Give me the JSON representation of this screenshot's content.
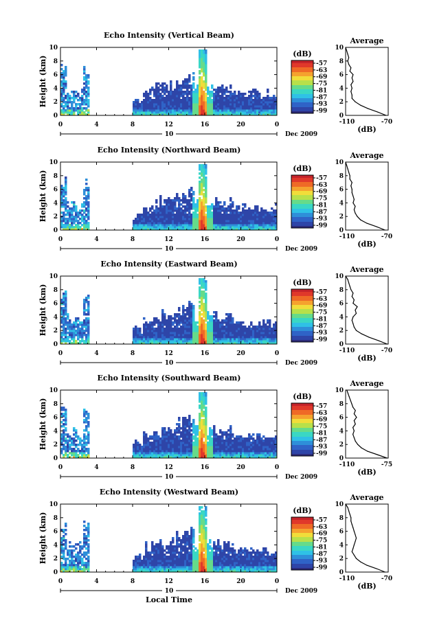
{
  "figure": {
    "xaxis_title": "Local Time",
    "date_label": "Dec 2009"
  },
  "chart_data": [
    {
      "type": "heatmap",
      "title": "Echo Intensity (Vertical Beam)",
      "ylabel": "Height (km)",
      "xlim": [
        0,
        24
      ],
      "ylim": [
        0,
        10
      ],
      "xticks": [
        "0",
        "4",
        "8",
        "12",
        "16",
        "20",
        "0"
      ],
      "yticks": [
        "0",
        "2",
        "4",
        "6",
        "8",
        "10"
      ],
      "day_label": "10",
      "colorbar": {
        "unit": "(dB)",
        "ticks": [
          "-57",
          "-63",
          "-69",
          "-75",
          "-81",
          "-87",
          "-93",
          "-99"
        ],
        "range": [
          -99,
          -57
        ]
      },
      "data_gaps_hours": [
        [
          3.2,
          8.0
        ]
      ],
      "peak_time_hour": 15.6,
      "profile": {
        "title": "Average",
        "xlabel": "(dB)",
        "xticks": [
          "-110",
          "-70"
        ],
        "xlim": [
          -110,
          -70
        ],
        "ylim": [
          0,
          10
        ],
        "heights_km": [
          0,
          0.5,
          1,
          1.5,
          2,
          2.5,
          3,
          3.5,
          4,
          4.5,
          5,
          5.5,
          6,
          6.5,
          7,
          7.5,
          8,
          8.5,
          9,
          9.5,
          10
        ],
        "values_db": [
          -72,
          -80,
          -89,
          -96,
          -101,
          -104,
          -104,
          -105,
          -104,
          -105,
          -103,
          -104,
          -103,
          -106,
          -105,
          -107,
          -108,
          -107,
          -108,
          -109,
          -110
        ]
      }
    },
    {
      "type": "heatmap",
      "title": "Echo Intensity (Northward Beam)",
      "ylabel": "Height (km)",
      "xlim": [
        0,
        24
      ],
      "ylim": [
        0,
        10
      ],
      "xticks": [
        "0",
        "4",
        "8",
        "12",
        "16",
        "20",
        "0"
      ],
      "yticks": [
        "0",
        "2",
        "4",
        "6",
        "8",
        "10"
      ],
      "day_label": "10",
      "colorbar": {
        "unit": "(dB)",
        "ticks": [
          "-57",
          "-63",
          "-69",
          "-75",
          "-81",
          "-87",
          "-93",
          "-99"
        ],
        "range": [
          -99,
          -57
        ]
      },
      "data_gaps_hours": [
        [
          3.2,
          8.0
        ]
      ],
      "peak_time_hour": 15.6,
      "profile": {
        "title": "Average",
        "xlabel": "(dB)",
        "xticks": [
          "-110",
          "-70"
        ],
        "xlim": [
          -110,
          -70
        ],
        "ylim": [
          0,
          10
        ],
        "heights_km": [
          0,
          0.5,
          1,
          1.5,
          2,
          2.5,
          3,
          3.5,
          4,
          4.5,
          5,
          5.5,
          6,
          6.5,
          7,
          7.5,
          8,
          8.5,
          9,
          9.5,
          10
        ],
        "values_db": [
          -73,
          -81,
          -90,
          -96,
          -99,
          -101,
          -102,
          -101,
          -103,
          -102,
          -103,
          -104,
          -104,
          -105,
          -104,
          -106,
          -106,
          -107,
          -108,
          -109,
          -110
        ]
      }
    },
    {
      "type": "heatmap",
      "title": "Echo Intensity (Eastward Beam)",
      "ylabel": "Height (km)",
      "xlim": [
        0,
        24
      ],
      "ylim": [
        0,
        10
      ],
      "xticks": [
        "0",
        "4",
        "8",
        "12",
        "16",
        "20",
        "0"
      ],
      "yticks": [
        "0",
        "2",
        "4",
        "6",
        "8",
        "10"
      ],
      "day_label": "10",
      "colorbar": {
        "unit": "(dB)",
        "ticks": [
          "-57",
          "-63",
          "-69",
          "-75",
          "-81",
          "-87",
          "-93",
          "-99"
        ],
        "range": [
          -99,
          -57
        ]
      },
      "data_gaps_hours": [
        [
          3.2,
          8.0
        ]
      ],
      "peak_time_hour": 15.6,
      "profile": {
        "title": "Average",
        "xlabel": "(dB)",
        "xticks": [
          "-110",
          "-70"
        ],
        "xlim": [
          -110,
          -70
        ],
        "ylim": [
          0,
          10
        ],
        "heights_km": [
          0,
          0.5,
          1,
          1.5,
          2,
          2.5,
          3,
          3.5,
          4,
          4.5,
          5,
          5.5,
          6,
          6.5,
          7,
          7.5,
          8,
          8.5,
          9,
          9.5,
          10
        ],
        "values_db": [
          -71,
          -79,
          -88,
          -95,
          -100,
          -102,
          -103,
          -104,
          -103,
          -100,
          -101,
          -99,
          -103,
          -102,
          -104,
          -103,
          -105,
          -106,
          -107,
          -108,
          -110
        ]
      }
    },
    {
      "type": "heatmap",
      "title": "Echo Intensity (Southward Beam)",
      "ylabel": "Height (km)",
      "xlim": [
        0,
        24
      ],
      "ylim": [
        0,
        10
      ],
      "xticks": [
        "0",
        "4",
        "8",
        "12",
        "16",
        "20",
        "0"
      ],
      "yticks": [
        "0",
        "2",
        "4",
        "6",
        "8",
        "10"
      ],
      "day_label": "10",
      "colorbar": {
        "unit": "(dB)",
        "ticks": [
          "-57",
          "-63",
          "-69",
          "-75",
          "-81",
          "-87",
          "-93",
          "-99"
        ],
        "range": [
          -99,
          -57
        ]
      },
      "data_gaps_hours": [
        [
          3.2,
          8.0
        ]
      ],
      "peak_time_hour": 15.6,
      "profile": {
        "title": "Average",
        "xlabel": "(dB)",
        "xticks": [
          "-110",
          "-75"
        ],
        "xlim": [
          -110,
          -75
        ],
        "ylim": [
          0,
          10
        ],
        "heights_km": [
          0,
          0.5,
          1,
          1.5,
          2,
          2.5,
          3,
          3.5,
          4,
          4.5,
          5,
          5.5,
          6,
          6.5,
          7,
          7.5,
          8,
          8.5,
          9,
          9.5,
          10
        ],
        "values_db": [
          -76,
          -84,
          -92,
          -97,
          -100,
          -102,
          -103,
          -104,
          -103,
          -104,
          -102,
          -103,
          -101,
          -103,
          -102,
          -104,
          -105,
          -106,
          -107,
          -108,
          -109
        ]
      }
    },
    {
      "type": "heatmap",
      "title": "Echo Intensity (Westward Beam)",
      "ylabel": "Height (km)",
      "xlim": [
        0,
        24
      ],
      "ylim": [
        0,
        10
      ],
      "xticks": [
        "0",
        "4",
        "8",
        "12",
        "16",
        "20",
        "0"
      ],
      "yticks": [
        "0",
        "2",
        "4",
        "6",
        "8",
        "10"
      ],
      "day_label": "10",
      "colorbar": {
        "unit": "(dB)",
        "ticks": [
          "-57",
          "-63",
          "-69",
          "-75",
          "-81",
          "-87",
          "-93",
          "-99"
        ],
        "range": [
          -99,
          -57
        ]
      },
      "data_gaps_hours": [
        [
          3.2,
          8.0
        ]
      ],
      "peak_time_hour": 15.6,
      "profile": {
        "title": "Average",
        "xlabel": "(dB)",
        "xticks": [
          "-110",
          "-70"
        ],
        "xlim": [
          -110,
          -70
        ],
        "ylim": [
          0,
          10
        ],
        "heights_km": [
          0,
          0.5,
          1,
          1.5,
          2,
          2.5,
          3,
          3.5,
          4,
          4.5,
          5,
          5.5,
          6,
          6.5,
          7,
          7.5,
          8,
          8.5,
          9,
          9.5,
          10
        ],
        "values_db": [
          -73,
          -81,
          -90,
          -96,
          -100,
          -102,
          -104,
          -103,
          -102,
          -101,
          -100,
          -101,
          -102,
          -103,
          -104,
          -105,
          -105,
          -106,
          -107,
          -108,
          -110
        ]
      }
    }
  ],
  "colors": {
    "colormap": [
      "#2d2b7a",
      "#2e45a8",
      "#2f63c7",
      "#2e8fd9",
      "#2fc1e6",
      "#3ad7c4",
      "#66db8a",
      "#b8e04a",
      "#f1dd3a",
      "#f5a22e",
      "#ef6a26",
      "#e0382a",
      "#c4232a"
    ],
    "axis": "#000000"
  }
}
